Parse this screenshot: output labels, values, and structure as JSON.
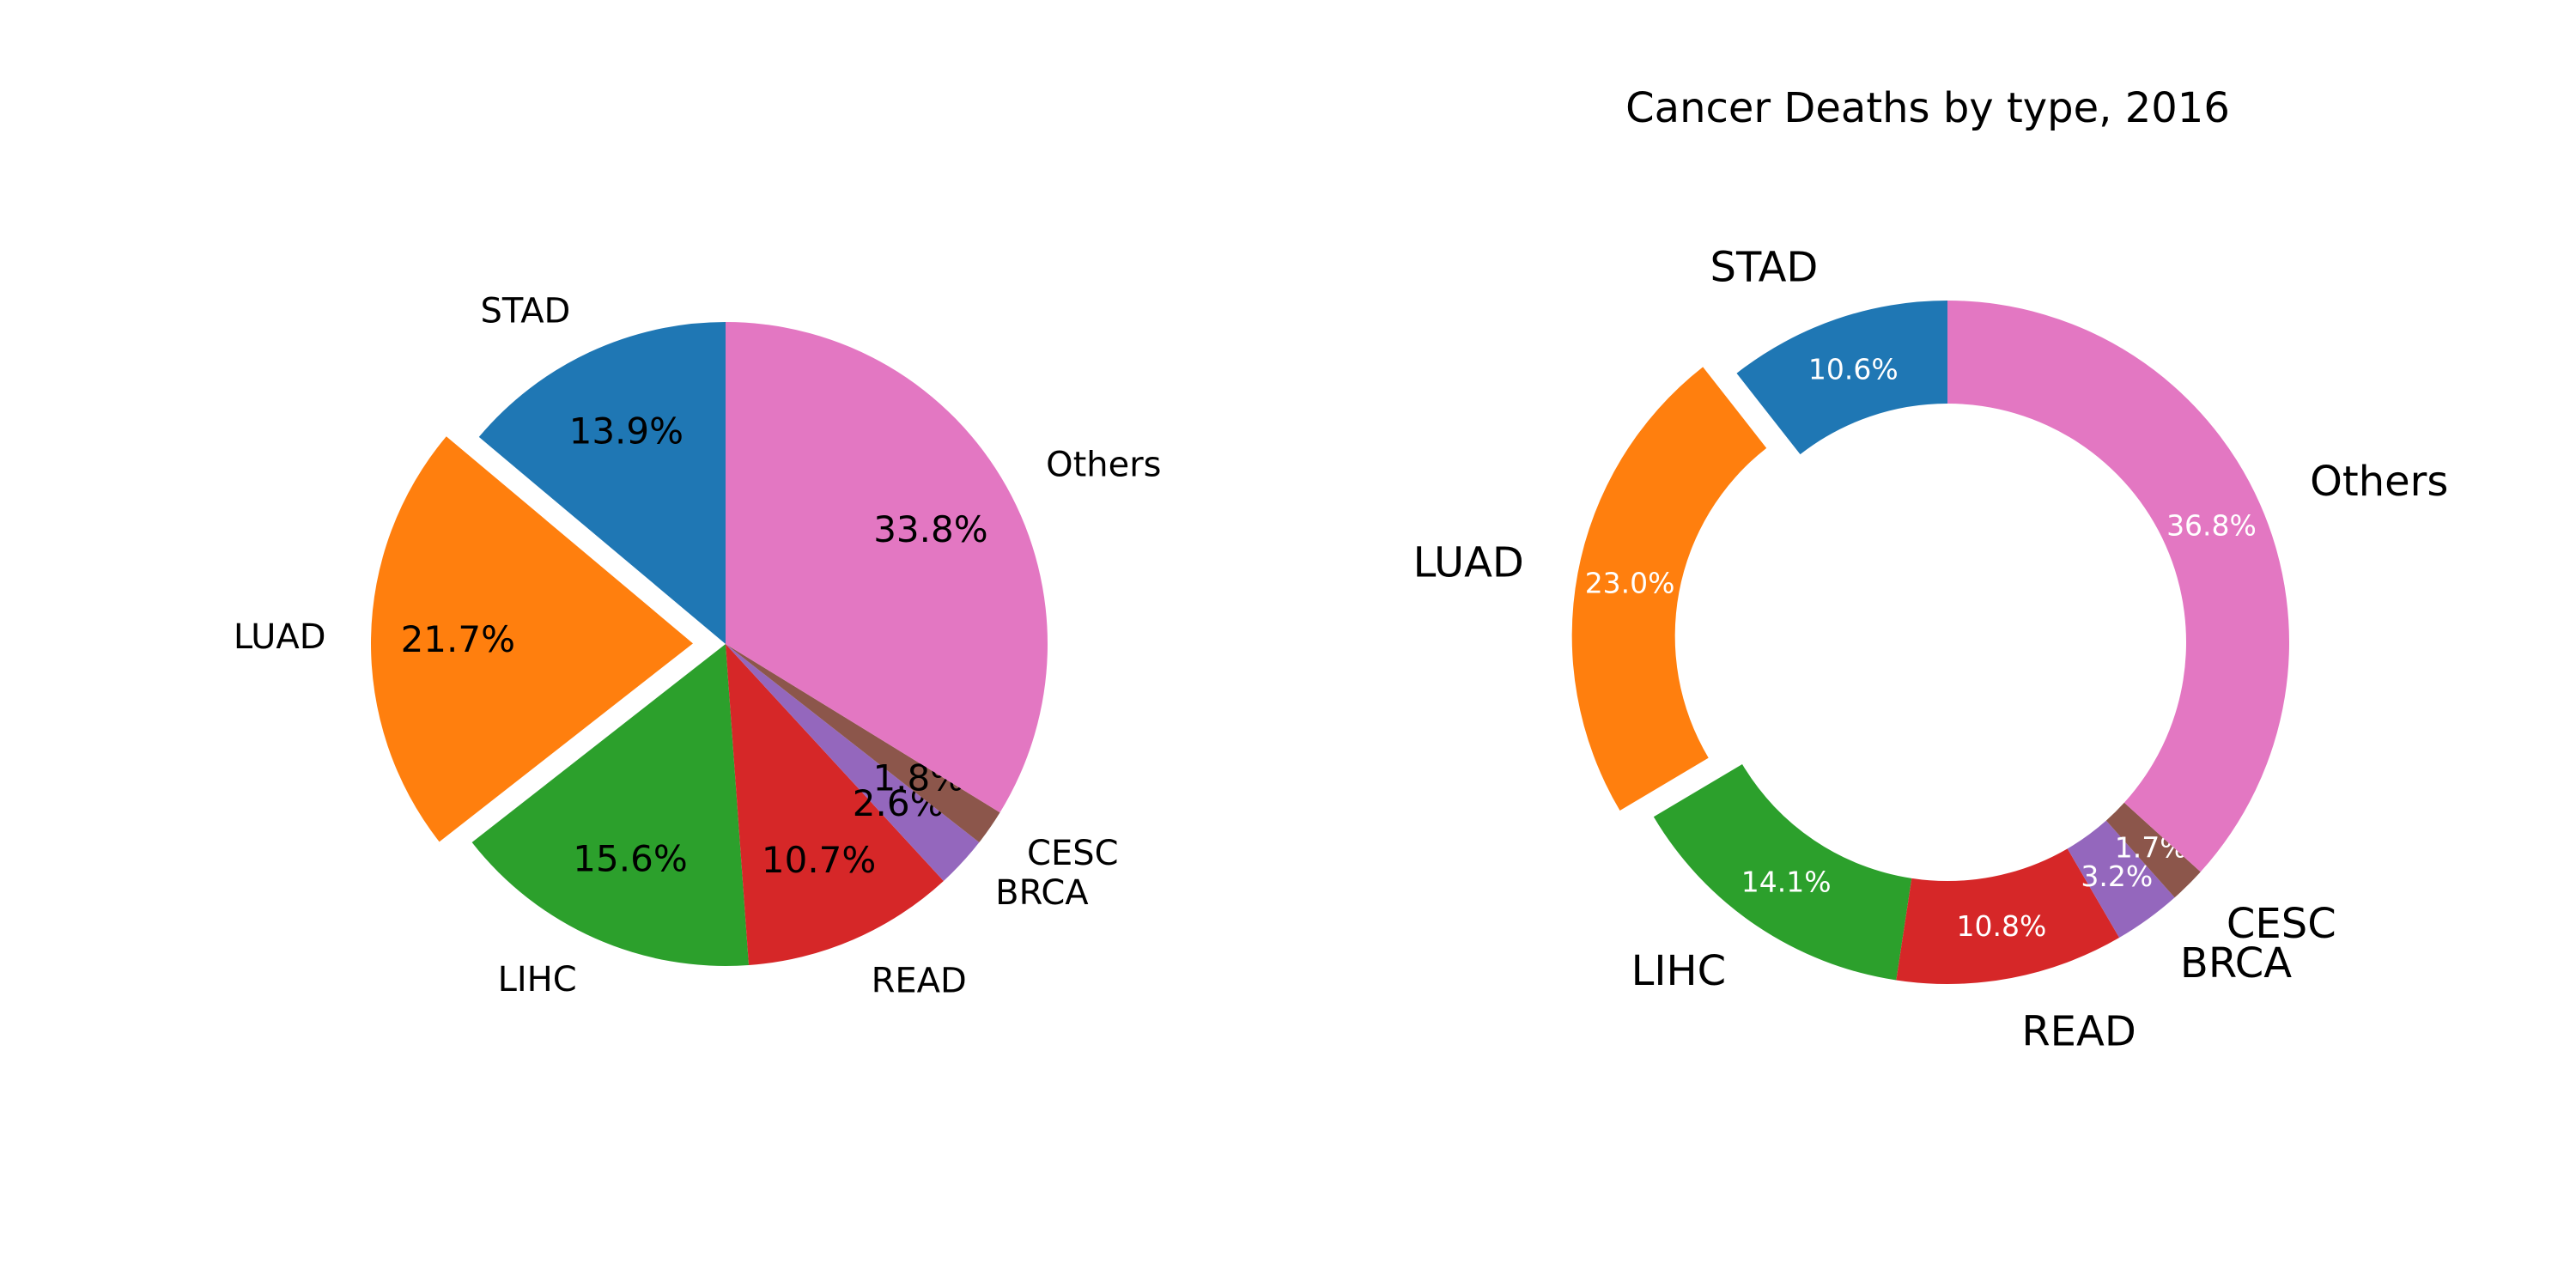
{
  "colors": {
    "STAD": "#1f77b4",
    "LUAD": "#ff7f0e",
    "LIHC": "#2ca02c",
    "READ": "#d62728",
    "BRCA": "#9467bd",
    "CESC": "#8c564b",
    "Others": "#e377c2"
  },
  "chart_data": [
    {
      "type": "pie",
      "title": "",
      "start_angle_deg": 90,
      "direction": "counterclockwise",
      "exploded": [
        "LUAD"
      ],
      "slices": [
        {
          "label": "STAD",
          "pct_label": "13.9%",
          "value": 13.9
        },
        {
          "label": "LUAD",
          "pct_label": "21.7%",
          "value": 21.7
        },
        {
          "label": "LIHC",
          "pct_label": "15.6%",
          "value": 15.6
        },
        {
          "label": "READ",
          "pct_label": "10.7%",
          "value": 10.7
        },
        {
          "label": "BRCA",
          "pct_label": "2.6%",
          "value": 2.6
        },
        {
          "label": "CESC",
          "pct_label": "1.8%",
          "value": 1.8
        },
        {
          "label": "Others",
          "pct_label": "33.8%",
          "value": 33.8
        }
      ]
    },
    {
      "type": "pie",
      "subtype": "donut",
      "title": "Cancer Deaths by type, 2016",
      "start_angle_deg": 90,
      "direction": "counterclockwise",
      "exploded": [
        "LUAD"
      ],
      "slices": [
        {
          "label": "STAD",
          "pct_label": "10.6%",
          "value": 10.6
        },
        {
          "label": "LUAD",
          "pct_label": "23.0%",
          "value": 23.0
        },
        {
          "label": "LIHC",
          "pct_label": "14.1%",
          "value": 14.1
        },
        {
          "label": "READ",
          "pct_label": "10.8%",
          "value": 10.8
        },
        {
          "label": "BRCA",
          "pct_label": "3.2%",
          "value": 3.2
        },
        {
          "label": "CESC",
          "pct_label": "1.7%",
          "value": 1.7
        },
        {
          "label": "Others",
          "pct_label": "36.8%",
          "value": 36.8
        }
      ]
    }
  ]
}
